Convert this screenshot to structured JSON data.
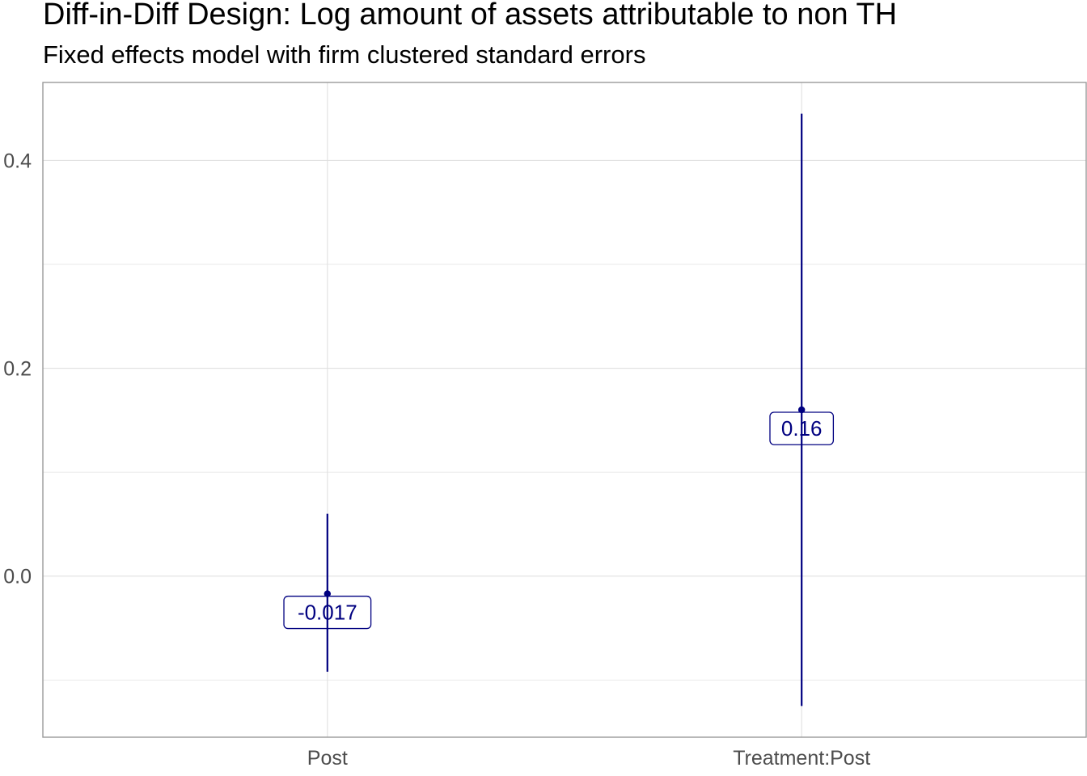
{
  "colors": {
    "series": "#000080",
    "panel_border": "#9a9a9a",
    "grid": "#e0e0e0",
    "tick_text": "#4d4d4d"
  },
  "chart_data": {
    "type": "errorbar",
    "title": "Diff-in-Diff Design: Log amount of assets attributable to non TH",
    "subtitle": "Fixed effects model with firm clustered standard errors",
    "xlabel": "",
    "ylabel": "",
    "categories": [
      "Post",
      "Treatment:Post"
    ],
    "estimates": [
      -0.017,
      0.16
    ],
    "ci_lower": [
      -0.092,
      -0.125
    ],
    "ci_upper": [
      0.06,
      0.445
    ],
    "value_labels": [
      "-0.017",
      "0.16"
    ],
    "ylim": [
      -0.155,
      0.475
    ],
    "y_ticks": [
      0.0,
      0.2,
      0.4
    ],
    "y_tick_labels": [
      "0.0",
      "0.2",
      "0.4"
    ],
    "y_minor_ticks": [
      -0.1,
      0.1,
      0.3
    ],
    "grid": true,
    "legend": "none"
  }
}
